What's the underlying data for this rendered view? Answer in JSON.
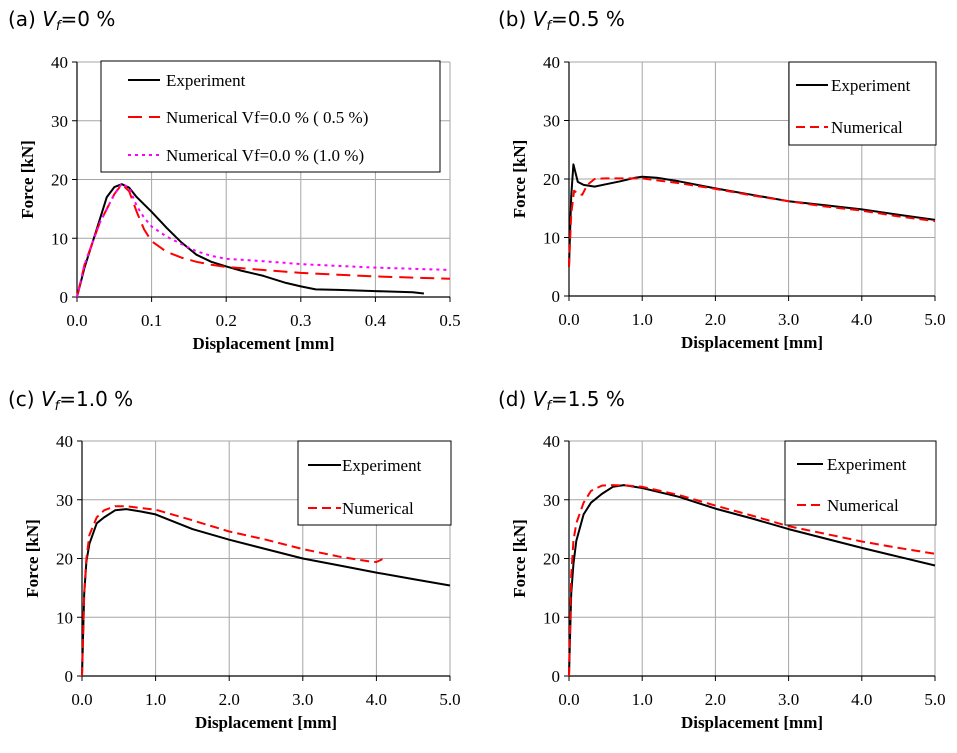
{
  "chart_data": [
    {
      "type": "line",
      "panel_label": "(a)",
      "title_var": "V",
      "title_sub": "f",
      "title_rest": "=0 %",
      "xlabel": "Displacement [mm]",
      "ylabel": "Force [kN]",
      "xlim": [
        0,
        0.5
      ],
      "ylim": [
        0,
        40
      ],
      "xticks": [
        "0.0",
        "0.1",
        "0.2",
        "0.3",
        "0.4",
        "0.5"
      ],
      "xtick_values": [
        0,
        0.1,
        0.2,
        0.3,
        0.4,
        0.5
      ],
      "yticks": [
        "0",
        "10",
        "20",
        "30",
        "40"
      ],
      "ytick_values": [
        0,
        10,
        20,
        30,
        40
      ],
      "grid": true,
      "legend": "top-right",
      "series": [
        {
          "name": "Experiment",
          "color": "#000000",
          "dash": "solid",
          "points": [
            [
              0,
              0
            ],
            [
              0.01,
              5
            ],
            [
              0.025,
              11
            ],
            [
              0.04,
              17
            ],
            [
              0.05,
              18.7
            ],
            [
              0.06,
              19.2
            ],
            [
              0.07,
              18.6
            ],
            [
              0.08,
              17
            ],
            [
              0.1,
              14.5
            ],
            [
              0.12,
              11.8
            ],
            [
              0.14,
              9.3
            ],
            [
              0.16,
              7.2
            ],
            [
              0.18,
              6
            ],
            [
              0.2,
              5.2
            ],
            [
              0.22,
              4.5
            ],
            [
              0.25,
              3.6
            ],
            [
              0.28,
              2.4
            ],
            [
              0.3,
              1.8
            ],
            [
              0.32,
              1.3
            ],
            [
              0.35,
              1.2
            ],
            [
              0.4,
              1.0
            ],
            [
              0.45,
              0.8
            ],
            [
              0.465,
              0.6
            ]
          ]
        },
        {
          "name": "Numerical Vf=0.0 % ( 0.5 %)",
          "color": "#ff0000",
          "dash": "long",
          "points": [
            [
              0,
              0
            ],
            [
              0.01,
              5.5
            ],
            [
              0.03,
              12.5
            ],
            [
              0.05,
              17.5
            ],
            [
              0.06,
              19.2
            ],
            [
              0.07,
              18
            ],
            [
              0.08,
              14.5
            ],
            [
              0.09,
              11.5
            ],
            [
              0.1,
              9.5
            ],
            [
              0.12,
              7.7
            ],
            [
              0.14,
              6.7
            ],
            [
              0.16,
              6
            ],
            [
              0.18,
              5.5
            ],
            [
              0.2,
              5.1
            ],
            [
              0.25,
              4.6
            ],
            [
              0.3,
              4.1
            ],
            [
              0.35,
              3.8
            ],
            [
              0.4,
              3.5
            ],
            [
              0.45,
              3.3
            ],
            [
              0.5,
              3.1
            ]
          ]
        },
        {
          "name": "Numerical Vf=0.0 % (1.0 %)",
          "color": "#ff00ff",
          "dash": "dot",
          "points": [
            [
              0,
              0
            ],
            [
              0.01,
              5.5
            ],
            [
              0.03,
              12.5
            ],
            [
              0.05,
              17.5
            ],
            [
              0.06,
              19.3
            ],
            [
              0.07,
              18.6
            ],
            [
              0.08,
              15.5
            ],
            [
              0.09,
              13.5
            ],
            [
              0.1,
              12
            ],
            [
              0.12,
              10.3
            ],
            [
              0.14,
              9
            ],
            [
              0.16,
              7.8
            ],
            [
              0.18,
              7
            ],
            [
              0.2,
              6.5
            ],
            [
              0.25,
              6.1
            ],
            [
              0.3,
              5.6
            ],
            [
              0.35,
              5.3
            ],
            [
              0.4,
              5.0
            ],
            [
              0.45,
              4.8
            ],
            [
              0.5,
              4.6
            ]
          ]
        }
      ]
    },
    {
      "type": "line",
      "panel_label": "(b)",
      "title_var": "V",
      "title_sub": "f",
      "title_rest": "=0.5 %",
      "xlabel": "Displacement [mm]",
      "ylabel": "Force [kN]",
      "xlim": [
        0,
        5
      ],
      "ylim": [
        0,
        40
      ],
      "xticks": [
        "0.0",
        "1.0",
        "2.0",
        "3.0",
        "4.0",
        "5.0"
      ],
      "xtick_values": [
        0,
        1,
        2,
        3,
        4,
        5
      ],
      "yticks": [
        "0",
        "10",
        "20",
        "30",
        "40"
      ],
      "ytick_values": [
        0,
        10,
        20,
        30,
        40
      ],
      "grid": true,
      "legend": "top-right",
      "series": [
        {
          "name": "Experiment",
          "color": "#000000",
          "dash": "solid",
          "points": [
            [
              0,
              5
            ],
            [
              0.03,
              17
            ],
            [
              0.06,
              22.5
            ],
            [
              0.09,
              21
            ],
            [
              0.12,
              19.5
            ],
            [
              0.2,
              19
            ],
            [
              0.35,
              18.7
            ],
            [
              0.5,
              19.1
            ],
            [
              0.7,
              19.6
            ],
            [
              0.9,
              20.2
            ],
            [
              1.0,
              20.4
            ],
            [
              1.2,
              20.2
            ],
            [
              1.5,
              19.6
            ],
            [
              2.0,
              18.4
            ],
            [
              2.5,
              17.3
            ],
            [
              3.0,
              16.2
            ],
            [
              3.5,
              15.5
            ],
            [
              4.0,
              14.8
            ],
            [
              4.5,
              13.9
            ],
            [
              5.0,
              13
            ]
          ]
        },
        {
          "name": "Numerical",
          "color": "#ff0000",
          "dash": "medium",
          "points": [
            [
              0,
              5
            ],
            [
              0.03,
              14
            ],
            [
              0.07,
              18
            ],
            [
              0.12,
              17.5
            ],
            [
              0.18,
              17.3
            ],
            [
              0.25,
              19
            ],
            [
              0.35,
              20
            ],
            [
              0.5,
              20.1
            ],
            [
              0.7,
              20.1
            ],
            [
              0.9,
              20.1
            ],
            [
              1.0,
              20.1
            ],
            [
              1.5,
              19.3
            ],
            [
              2.0,
              18.3
            ],
            [
              2.5,
              17.2
            ],
            [
              3.0,
              16.2
            ],
            [
              3.5,
              15.3
            ],
            [
              4.0,
              14.6
            ],
            [
              4.5,
              13.6
            ],
            [
              5.0,
              12.8
            ]
          ]
        }
      ]
    },
    {
      "type": "line",
      "panel_label": "(c)",
      "title_var": "V",
      "title_sub": "f",
      "title_rest": "=1.0 %",
      "xlabel": "Displacement [mm]",
      "ylabel": "Force [kN]",
      "xlim": [
        0,
        5
      ],
      "ylim": [
        0,
        40
      ],
      "xticks": [
        "0.0",
        "1.0",
        "2.0",
        "3.0",
        "4.0",
        "5.0"
      ],
      "xtick_values": [
        0,
        1,
        2,
        3,
        4,
        5
      ],
      "yticks": [
        "0",
        "10",
        "20",
        "30",
        "40"
      ],
      "ytick_values": [
        0,
        10,
        20,
        30,
        40
      ],
      "grid": true,
      "legend": "top-right",
      "series": [
        {
          "name": "Experiment",
          "color": "#000000",
          "dash": "solid",
          "points": [
            [
              0,
              0
            ],
            [
              0.03,
              14
            ],
            [
              0.06,
              19.5
            ],
            [
              0.1,
              22.5
            ],
            [
              0.2,
              26
            ],
            [
              0.3,
              27
            ],
            [
              0.45,
              28.2
            ],
            [
              0.6,
              28.4
            ],
            [
              0.8,
              28
            ],
            [
              1.0,
              27.5
            ],
            [
              1.5,
              25
            ],
            [
              2.0,
              23.2
            ],
            [
              2.5,
              21.6
            ],
            [
              3.0,
              20
            ],
            [
              3.5,
              18.8
            ],
            [
              4.0,
              17.6
            ],
            [
              4.5,
              16.5
            ],
            [
              5.0,
              15.4
            ]
          ]
        },
        {
          "name": "Numerical",
          "color": "#ff0000",
          "dash": "medium",
          "points": [
            [
              0,
              0
            ],
            [
              0.03,
              14
            ],
            [
              0.06,
              20
            ],
            [
              0.1,
              24
            ],
            [
              0.2,
              27
            ],
            [
              0.3,
              28.2
            ],
            [
              0.45,
              28.9
            ],
            [
              0.6,
              28.9
            ],
            [
              0.8,
              28.6
            ],
            [
              1.0,
              28.3
            ],
            [
              1.5,
              26.5
            ],
            [
              2.0,
              24.6
            ],
            [
              2.5,
              23.2
            ],
            [
              3.0,
              21.6
            ],
            [
              3.5,
              20.3
            ],
            [
              3.9,
              19.5
            ],
            [
              4.0,
              19.4
            ],
            [
              4.1,
              20
            ]
          ]
        }
      ]
    },
    {
      "type": "line",
      "panel_label": "(d)",
      "title_var": "V",
      "title_sub": "f",
      "title_rest": "=1.5 %",
      "xlabel": "Displacement [mm]",
      "ylabel": "Force [kN]",
      "xlim": [
        0,
        5
      ],
      "ylim": [
        0,
        40
      ],
      "xticks": [
        "0.0",
        "1.0",
        "2.0",
        "3.0",
        "4.0",
        "5.0"
      ],
      "xtick_values": [
        0,
        1,
        2,
        3,
        4,
        5
      ],
      "yticks": [
        "0",
        "10",
        "20",
        "30",
        "40"
      ],
      "ytick_values": [
        0,
        10,
        20,
        30,
        40
      ],
      "grid": true,
      "legend": "top-right",
      "series": [
        {
          "name": "Experiment",
          "color": "#000000",
          "dash": "solid",
          "points": [
            [
              0,
              0
            ],
            [
              0.03,
              14
            ],
            [
              0.06,
              19
            ],
            [
              0.1,
              23
            ],
            [
              0.2,
              27.5
            ],
            [
              0.3,
              29.5
            ],
            [
              0.45,
              31
            ],
            [
              0.6,
              32.2
            ],
            [
              0.75,
              32.5
            ],
            [
              1.0,
              32
            ],
            [
              1.5,
              30.5
            ],
            [
              2.0,
              28.5
            ],
            [
              2.5,
              26.8
            ],
            [
              3.0,
              25
            ],
            [
              3.5,
              23.4
            ],
            [
              4.0,
              21.8
            ],
            [
              4.5,
              20.3
            ],
            [
              5.0,
              18.8
            ]
          ]
        },
        {
          "name": "Numerical",
          "color": "#ff0000",
          "dash": "medium",
          "points": [
            [
              0,
              0
            ],
            [
              0.03,
              17
            ],
            [
              0.06,
              23
            ],
            [
              0.1,
              26
            ],
            [
              0.2,
              29.5
            ],
            [
              0.3,
              31.5
            ],
            [
              0.45,
              32.4
            ],
            [
              0.6,
              32.5
            ],
            [
              0.8,
              32.4
            ],
            [
              1.0,
              32.2
            ],
            [
              1.5,
              30.8
            ],
            [
              2.0,
              29
            ],
            [
              2.5,
              27.3
            ],
            [
              3.0,
              25.5
            ],
            [
              3.5,
              24.2
            ],
            [
              4.0,
              22.9
            ],
            [
              4.5,
              21.8
            ],
            [
              5.0,
              20.8
            ]
          ]
        }
      ]
    }
  ]
}
